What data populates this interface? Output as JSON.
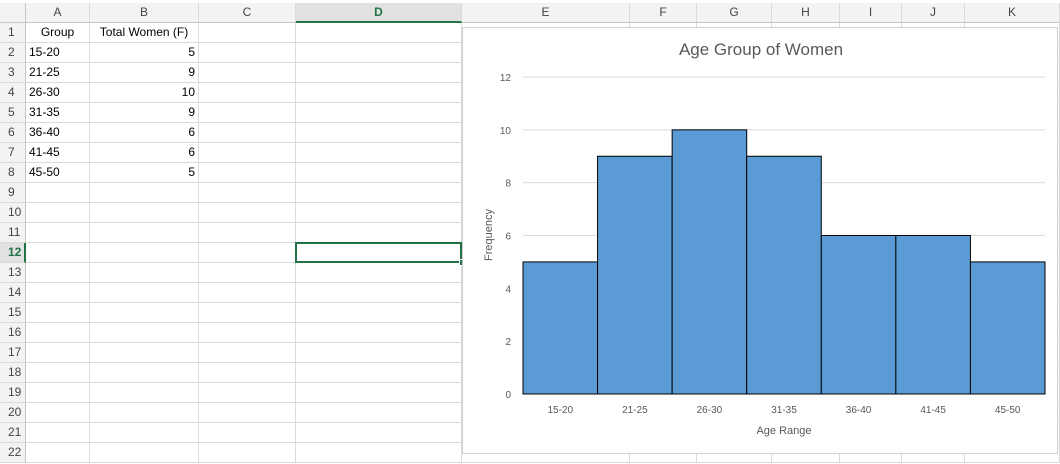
{
  "spreadsheet": {
    "columns": [
      {
        "label": "A"
      },
      {
        "label": "B"
      },
      {
        "label": "C"
      },
      {
        "label": "D"
      },
      {
        "label": "E"
      },
      {
        "label": "F"
      },
      {
        "label": "G"
      },
      {
        "label": "H"
      },
      {
        "label": "I"
      },
      {
        "label": "J"
      },
      {
        "label": "K"
      }
    ],
    "selected_column": "D",
    "rows": [
      "1",
      "2",
      "3",
      "4",
      "5",
      "6",
      "7",
      "8",
      "9",
      "10",
      "11",
      "12",
      "13",
      "14",
      "15",
      "16",
      "17",
      "18",
      "19",
      "20",
      "21",
      "22"
    ],
    "selected_row": "12",
    "header": {
      "group": "Group",
      "total": "Total Women (F)"
    },
    "data": [
      {
        "group": "15-20",
        "total": "5"
      },
      {
        "group": "21-25",
        "total": "9"
      },
      {
        "group": "26-30",
        "total": "10"
      },
      {
        "group": "31-35",
        "total": "9"
      },
      {
        "group": "36-40",
        "total": "6"
      },
      {
        "group": "41-45",
        "total": "6"
      },
      {
        "group": "45-50",
        "total": "5"
      }
    ],
    "active_cell": "D12"
  },
  "chart_data": {
    "type": "bar",
    "title": "Age Group of Women",
    "xlabel": "Age Range",
    "ylabel": "Frequency",
    "categories": [
      "15-20",
      "21-25",
      "26-30",
      "31-35",
      "36-40",
      "41-45",
      "45-50"
    ],
    "values": [
      5,
      9,
      10,
      9,
      6,
      6,
      5
    ],
    "ylim": [
      0,
      12
    ],
    "yticks": [
      "0",
      "2",
      "4",
      "6",
      "8",
      "10",
      "12"
    ],
    "grid": true,
    "bar_gap": 0,
    "colors": {
      "bar": "#5b9bd5",
      "bar_edge": "#000000",
      "grid": "#d9d9d9"
    }
  }
}
